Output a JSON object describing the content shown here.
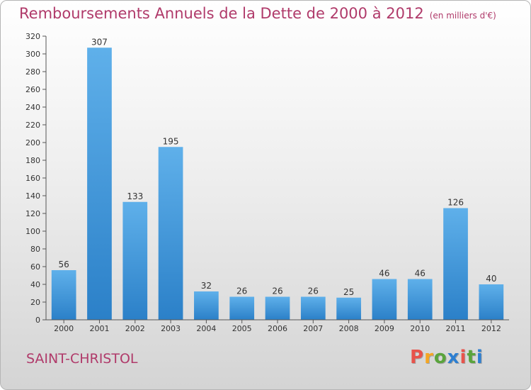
{
  "chart_data": {
    "type": "bar",
    "title": "Remboursements Annuels de la Dette de 2000 à 2012",
    "subtitle": "(en milliers d'€)",
    "categories": [
      "2000",
      "2001",
      "2002",
      "2003",
      "2004",
      "2005",
      "2006",
      "2007",
      "2008",
      "2009",
      "2010",
      "2011",
      "2012"
    ],
    "values": [
      56,
      307,
      133,
      195,
      32,
      26,
      26,
      26,
      25,
      46,
      46,
      126,
      40
    ],
    "ylim": [
      0,
      320
    ],
    "yticks": [
      0,
      20,
      40,
      60,
      80,
      100,
      120,
      140,
      160,
      180,
      200,
      220,
      240,
      260,
      280,
      300,
      320
    ],
    "grid": false,
    "bar_color": "#3a93d6"
  },
  "footer": {
    "city": "SAINT-CHRISTOL",
    "logo_text": "Proxiti"
  },
  "colors": {
    "title": "#b03a6a",
    "logo": [
      "#e8534b",
      "#f5a623",
      "#5aa43c",
      "#2d7fd1",
      "#e8534b",
      "#5aa43c",
      "#2d7fd1"
    ]
  }
}
